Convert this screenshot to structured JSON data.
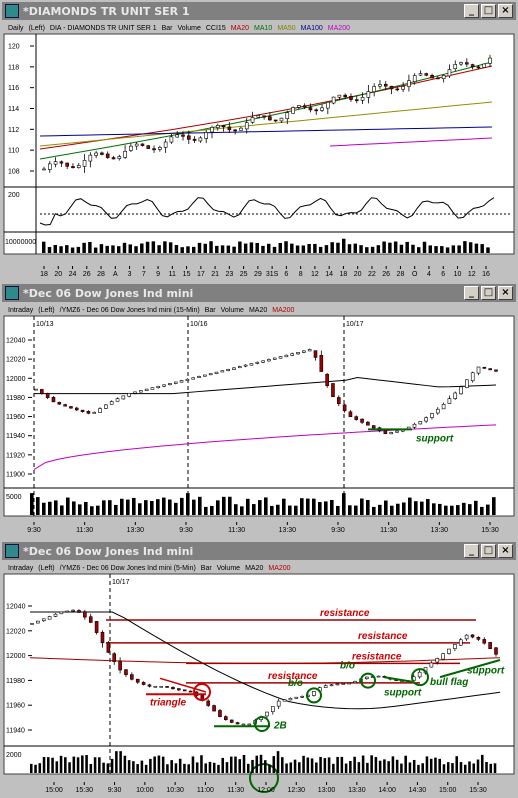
{
  "windows": [
    {
      "title": "*DIAMONDS TR UNIT SER 1",
      "header": {
        "parts": [
          "Daily",
          "(Left)",
          "DIA - DIAMONDS TR UNIT SER 1",
          "Bar",
          "Volume",
          "CCI15",
          "MA20",
          "MA10",
          "MA50",
          "MA100",
          "MA200"
        ],
        "colors": [
          "#000",
          "#000",
          "#000",
          "#000",
          "#000",
          "#000",
          "#b00000",
          "#007000",
          "#808000",
          "#000090",
          "#c000c0"
        ]
      },
      "price_ticks": [
        "120",
        "118",
        "116",
        "114",
        "112",
        "110",
        "108"
      ],
      "volume_tick": "10000000",
      "cci_tick": "200",
      "x_ticks": [
        "18",
        "20",
        "24",
        "26",
        "28",
        "A",
        "3",
        "7",
        "9",
        "11",
        "15",
        "17",
        "21",
        "23",
        "25",
        "29",
        "31S",
        "6",
        "8",
        "12",
        "14",
        "18",
        "20",
        "22",
        "26",
        "28",
        "O",
        "4",
        "6",
        "10",
        "12",
        "16"
      ]
    },
    {
      "title": "*Dec 06 Dow Jones Ind mini",
      "header": {
        "parts": [
          "Intraday",
          "(Left)",
          "/YMZ6 - Dec 06 Dow Jones Ind mini (15-Min)",
          "Bar",
          "Volume",
          "MA20",
          "MA200"
        ],
        "colors": [
          "#000",
          "#000",
          "#000",
          "#000",
          "#000",
          "#000",
          "#b00000"
        ]
      },
      "session_labels": [
        "10/13",
        "10/16",
        "10/17"
      ],
      "price_ticks": [
        "12040",
        "12020",
        "12000",
        "11980",
        "11960",
        "11940",
        "11920",
        "11900"
      ],
      "volume_tick": "5000",
      "x_ticks": [
        "9:30",
        "11:30",
        "13:30",
        "9:30",
        "11:30",
        "13:30",
        "9:30",
        "11:30",
        "13:30",
        "15:30"
      ],
      "annotations": [
        "support"
      ]
    },
    {
      "title": "*Dec 06 Dow Jones Ind mini",
      "header": {
        "parts": [
          "Intraday",
          "(Left)",
          "/YMZ6 - Dec 06 Dow Jones Ind mini (5-Min)",
          "Bar",
          "Volume",
          "MA20",
          "MA200"
        ],
        "colors": [
          "#000",
          "#000",
          "#000",
          "#000",
          "#000",
          "#000",
          "#b00000"
        ]
      },
      "session_labels": [
        "10/17"
      ],
      "price_ticks": [
        "12040",
        "12020",
        "12000",
        "11980",
        "11960",
        "11940"
      ],
      "volume_tick": "2000",
      "x_ticks": [
        "15:00",
        "15:30",
        "9:30",
        "10:00",
        "10:30",
        "11:00",
        "11:30",
        "12:00",
        "12:30",
        "13:00",
        "13:30",
        "14:00",
        "14:30",
        "15:00",
        "15:30"
      ],
      "annotations": {
        "resistance": "resistance",
        "triangle": "triangle",
        "bo": "b/o",
        "two_b": "2B",
        "support": "support",
        "bull_flag": "bull flag"
      }
    }
  ],
  "colors": {
    "up_candle": "#ffffff",
    "down_candle": "#a00000",
    "ma20": "#b00000",
    "ma10": "#007000",
    "ma50": "#909000",
    "ma100": "#000090",
    "ma200": "#c000c0",
    "annotation_red": "#cc0000",
    "annotation_green": "#006600",
    "resistance_line": "#a00000"
  },
  "chart_data": [
    {
      "type": "candlestick",
      "title": "DIA - DIAMONDS TR UNIT SER 1",
      "timeframe": "Daily",
      "ylim": [
        107,
        121
      ],
      "trend": {
        "start": 108.5,
        "end": 119.5
      },
      "series": [
        {
          "name": "MA20",
          "start": 110.5,
          "end": 118.8
        },
        {
          "name": "MA10",
          "start": 109.5,
          "end": 119.2
        },
        {
          "name": "MA50",
          "start": 110.8,
          "end": 115.2
        },
        {
          "name": "MA100",
          "start": 111.8,
          "end": 112.7
        },
        {
          "name": "MA200",
          "start": 110.8,
          "end": 111.6
        }
      ],
      "indicator": "CCI15",
      "volume_panel": true
    },
    {
      "type": "candlestick",
      "title": "/YMZ6 - Dec 06 Dow Jones Ind mini (15-Min)",
      "timeframe": "15-Min",
      "ylim": [
        11895,
        12045
      ],
      "sessions": [
        "10/13",
        "10/16",
        "10/17"
      ],
      "path": [
        11990,
        11975,
        11968,
        11962,
        11975,
        11985,
        11990,
        11995,
        12000,
        12005,
        12010,
        12015,
        12020,
        12025,
        12030,
        12035,
        11985,
        11960,
        11950,
        11940,
        11945,
        11955,
        11970,
        11990,
        12015,
        12010
      ],
      "series": [
        {
          "name": "MA20",
          "start": 11985,
          "end": 11975
        },
        {
          "name": "MA200",
          "start": 11900,
          "end": 11950
        }
      ],
      "support": 11945,
      "volume_panel": true
    },
    {
      "type": "candlestick",
      "title": "/YMZ6 - Dec 06 Dow Jones Ind mini (5-Min)",
      "timeframe": "5-Min",
      "ylim": [
        11935,
        12047
      ],
      "sessions": [
        "10/17"
      ],
      "path": [
        12030,
        12035,
        12040,
        12042,
        12032,
        12010,
        11990,
        11980,
        11975,
        11975,
        11972,
        11970,
        11960,
        11948,
        11942,
        11942,
        11950,
        11962,
        11965,
        11967,
        11975,
        11977,
        11978,
        11983,
        11984,
        11980,
        11980,
        11990,
        12000,
        12010,
        12020,
        12015,
        12003
      ],
      "resistance_levels": [
        12033,
        12013,
        11995,
        11978
      ],
      "support_levels": [
        11940,
        11966,
        11983
      ],
      "series": [
        {
          "name": "MA20",
          "start": 12040,
          "end": 11998
        },
        {
          "name": "MA200",
          "start": 12000,
          "end": 11995
        }
      ],
      "volume_panel": true
    }
  ]
}
